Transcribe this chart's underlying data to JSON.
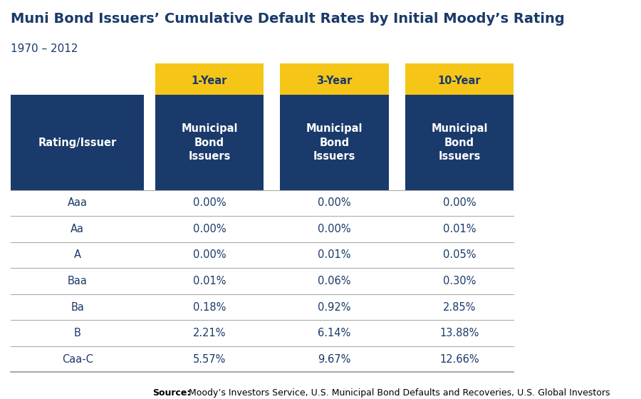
{
  "title": "Muni Bond Issuers’ Cumulative Default Rates by Initial Moody’s Rating",
  "subtitle": "1970 – 2012",
  "col_headers_top": [
    "1-Year",
    "3-Year",
    "10-Year"
  ],
  "col_headers_sub": [
    "Municipal\nBond\nIssuers",
    "Municipal\nBond\nIssuers",
    "Municipal\nBond\nIssuers"
  ],
  "row_header": "Rating/Issuer",
  "ratings": [
    "Aaa",
    "Aa",
    "A",
    "Baa",
    "Ba",
    "B",
    "Caa-C"
  ],
  "data": [
    [
      "0.00%",
      "0.00%",
      "0.00%"
    ],
    [
      "0.00%",
      "0.00%",
      "0.01%"
    ],
    [
      "0.00%",
      "0.01%",
      "0.05%"
    ],
    [
      "0.01%",
      "0.06%",
      "0.30%"
    ],
    [
      "0.18%",
      "0.92%",
      "2.85%"
    ],
    [
      "2.21%",
      "6.14%",
      "13.88%"
    ],
    [
      "5.57%",
      "9.67%",
      "12.66%"
    ]
  ],
  "source_bold": "Source:",
  "source_text": " Moody’s Investors Service, U.S. Municipal Bond Defaults and Recoveries, U.S. Global Investors",
  "dark_blue": "#1a3a6b",
  "gold": "#f5c518",
  "white": "#ffffff",
  "dark_text": "#1a3a6b",
  "light_gray_line": "#aaaaaa",
  "bg_white": "#ffffff",
  "title_color": "#1a3a6b",
  "title_fontsize": 14,
  "subtitle_fontsize": 11,
  "header_fontsize": 10.5,
  "data_fontsize": 10.5
}
